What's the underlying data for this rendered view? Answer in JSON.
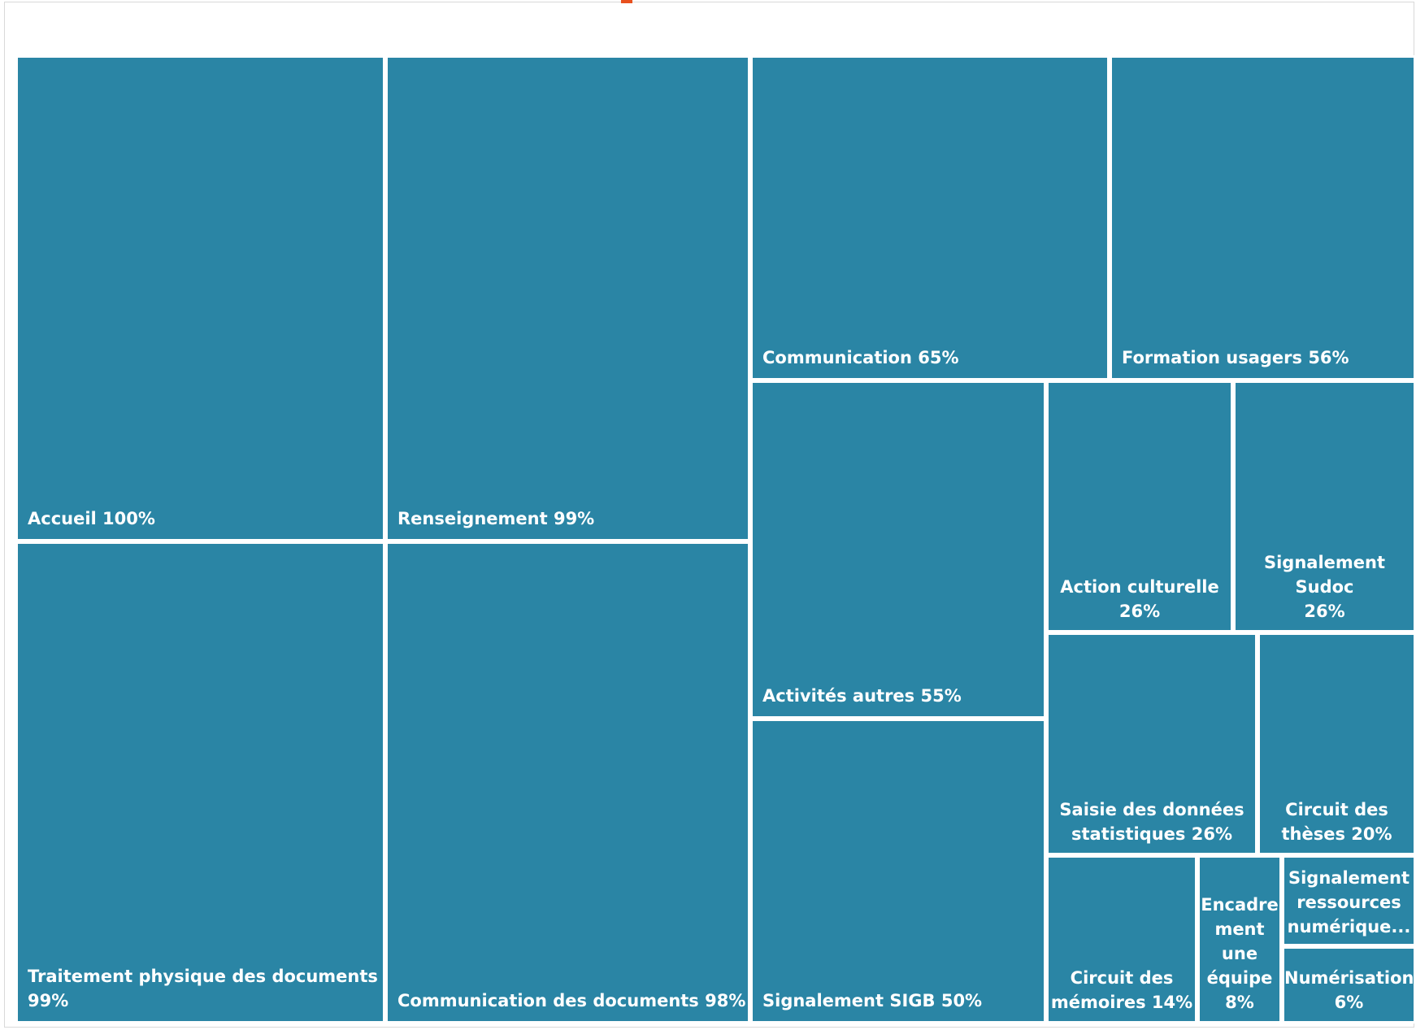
{
  "chart_data": {
    "type": "treemap",
    "color": "#2a85a5",
    "accent_color": "#e8501e",
    "items": [
      {
        "label": "Accueil",
        "value": 100,
        "text": "Accueil 100%"
      },
      {
        "label": "Renseignement",
        "value": 99,
        "text": "Renseignement 99%"
      },
      {
        "label": "Traitement physique des documents",
        "value": 99,
        "text": "Traitement physique des documents 99%"
      },
      {
        "label": "Communication des documents",
        "value": 98,
        "text": "Communication des documents 98%"
      },
      {
        "label": "Communication",
        "value": 65,
        "text": "Communication 65%"
      },
      {
        "label": "Formation usagers",
        "value": 56,
        "text": "Formation usagers 56%"
      },
      {
        "label": "Activités autres",
        "value": 55,
        "text": "Activités autres 55%"
      },
      {
        "label": "Signalement SIGB",
        "value": 50,
        "text": "Signalement SIGB 50%"
      },
      {
        "label": "Action culturelle",
        "value": 26,
        "text": "Action culturelle\n26%"
      },
      {
        "label": "Signalement Sudoc",
        "value": 26,
        "text": "Signalement Sudoc\n26%"
      },
      {
        "label": "Saisie des données statistiques",
        "value": 26,
        "text": "Saisie des données\nstatistiques 26%"
      },
      {
        "label": "Circuit des thèses",
        "value": 20,
        "text": "Circuit des\nthèses 20%"
      },
      {
        "label": "Circuit des mémoires",
        "value": 14,
        "text": "Circuit des\nmémoires 14%"
      },
      {
        "label": "Encadrement une équipe",
        "value": 8,
        "text": "Encadre\nment\nune\néquipe\n8%"
      },
      {
        "label": "Signalement ressources numérique...",
        "value": null,
        "text": "Signalement\nressources\nnumérique..."
      },
      {
        "label": "Numérisation",
        "value": 6,
        "text": "Numérisation\n6%"
      }
    ]
  }
}
